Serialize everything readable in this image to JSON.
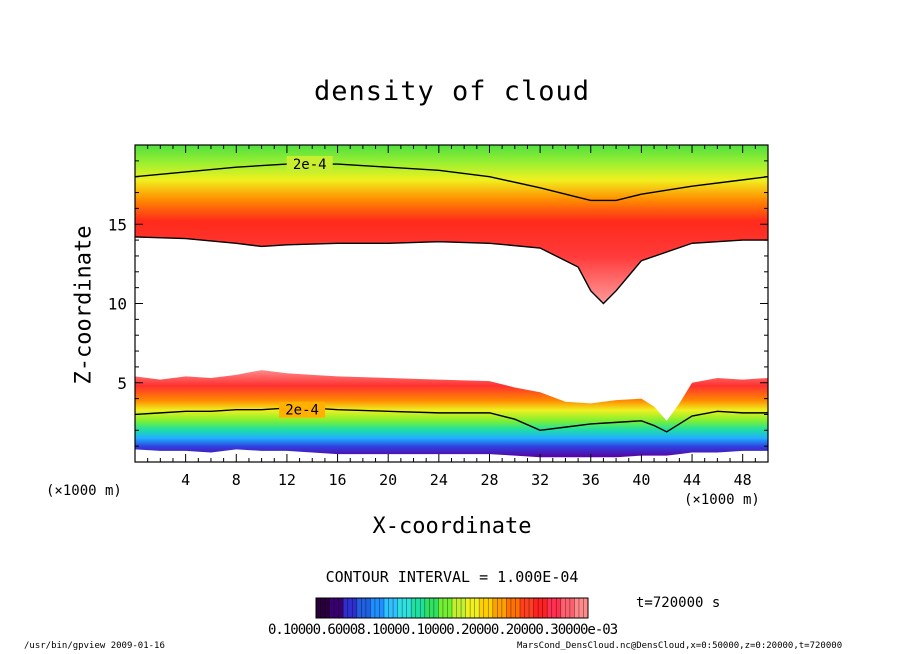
{
  "chart_data": {
    "type": "heatmap",
    "title": "density of cloud",
    "xlabel": "X-coordinate",
    "ylabel": "Z-coordinate",
    "x_unit": "(×1000 m)",
    "xlim": [
      0,
      50
    ],
    "ylim": [
      0,
      20
    ],
    "x_ticks": [
      4,
      8,
      12,
      16,
      20,
      24,
      28,
      32,
      36,
      40,
      44,
      48
    ],
    "y_ticks": [
      5,
      10,
      15
    ],
    "contour_interval": "CONTOUR INTERVAL = 1.000E-04",
    "contour_labels": [
      {
        "text": "2e-4",
        "x": 13.8,
        "y": 18.8
      },
      {
        "text": "2e-4",
        "x": 13.2,
        "y": 3.3
      }
    ],
    "upper_layer": {
      "x": [
        0,
        4,
        8,
        10,
        12,
        16,
        20,
        24,
        28,
        32,
        35,
        36,
        37,
        38,
        40,
        44,
        48,
        50
      ],
      "bottom": [
        14.2,
        14.1,
        13.8,
        13.6,
        13.7,
        13.8,
        13.8,
        13.9,
        13.8,
        13.5,
        12.3,
        10.8,
        10.0,
        10.8,
        12.7,
        13.8,
        14.0,
        14.0
      ],
      "contour": [
        18.0,
        18.3,
        18.6,
        18.7,
        18.8,
        18.8,
        18.6,
        18.4,
        18.0,
        17.3,
        16.7,
        16.5,
        16.5,
        16.5,
        16.9,
        17.4,
        17.8,
        18.0
      ]
    },
    "lower_layer": {
      "x": [
        0,
        2,
        4,
        6,
        8,
        10,
        12,
        14,
        16,
        20,
        24,
        28,
        30,
        32,
        34,
        36,
        38,
        40,
        41,
        42,
        43,
        44,
        46,
        48,
        50
      ],
      "top": [
        5.4,
        5.2,
        5.4,
        5.3,
        5.5,
        5.8,
        5.6,
        5.5,
        5.4,
        5.3,
        5.2,
        5.1,
        4.7,
        4.4,
        3.8,
        3.7,
        3.9,
        4.0,
        3.5,
        2.6,
        3.7,
        5.0,
        5.3,
        5.2,
        5.3
      ],
      "contour": [
        3.0,
        3.1,
        3.2,
        3.2,
        3.3,
        3.3,
        3.4,
        3.4,
        3.3,
        3.2,
        3.1,
        3.1,
        2.7,
        2.0,
        2.2,
        2.4,
        2.5,
        2.6,
        2.3,
        1.9,
        2.4,
        2.9,
        3.2,
        3.1,
        3.1
      ],
      "bottom": [
        0.8,
        0.7,
        0.7,
        0.6,
        0.8,
        0.7,
        0.7,
        0.6,
        0.5,
        0.5,
        0.5,
        0.5,
        0.4,
        0.3,
        0.3,
        0.3,
        0.3,
        0.4,
        0.4,
        0.4,
        0.5,
        0.6,
        0.6,
        0.7,
        0.7
      ]
    },
    "colorbar": {
      "labels": "0.10000.60008.10000.10000.20000.20000.30000e-03",
      "colors": [
        "#2a003c",
        "#3a0070",
        "#2f2fcf",
        "#1f5fe0",
        "#1f8fff",
        "#2fc0ff",
        "#30dfdf",
        "#20e0a0",
        "#30e060",
        "#70f030",
        "#c0f030",
        "#f0f020",
        "#ffd000",
        "#ffa000",
        "#ff7000",
        "#ff4020",
        "#ff2020",
        "#ff3050",
        "#ff6070",
        "#ff8a8a"
      ]
    },
    "legend": "none",
    "grid": false
  },
  "time_label": "t=720000 s",
  "footer": {
    "left": "/usr/bin/gpview  2009-01-16",
    "right": "MarsCond_DensCloud.nc@DensCloud,x=0:50000,z=0:20000,t=720000"
  }
}
